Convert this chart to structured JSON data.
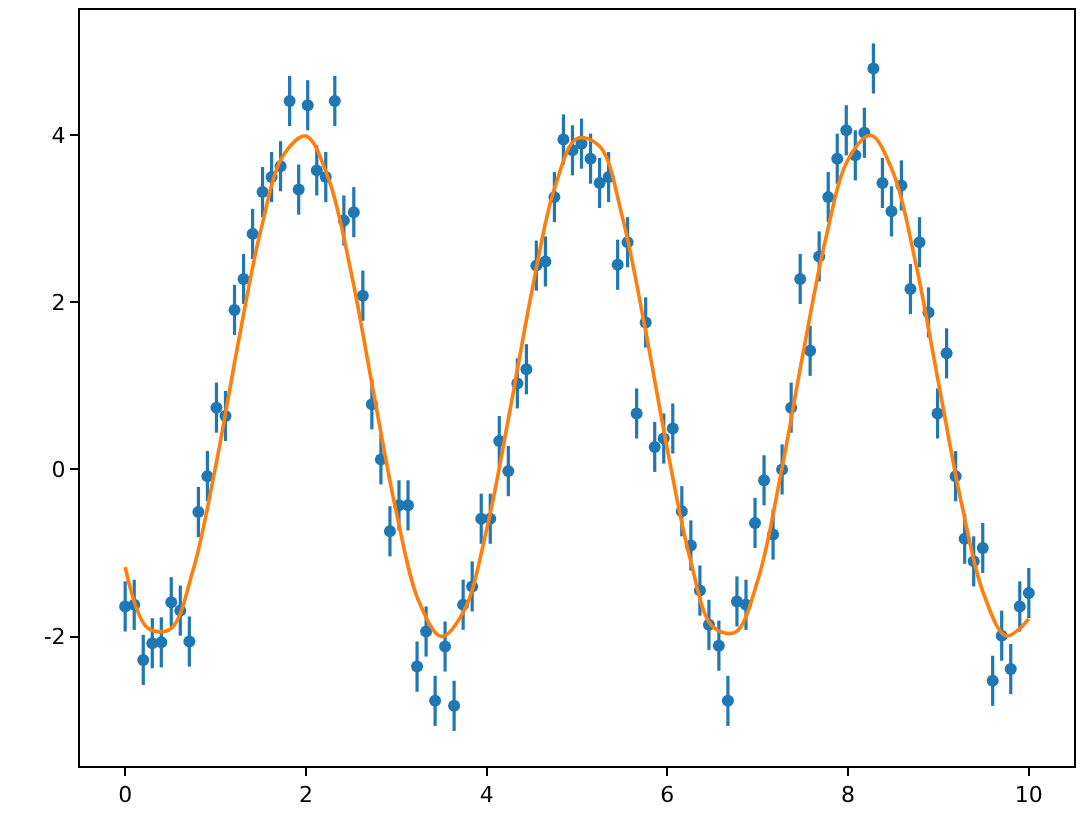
{
  "chart_data": {
    "type": "scatter",
    "xlim": [
      -0.5,
      10.5
    ],
    "ylim": [
      -3.55,
      5.5
    ],
    "xticks": [
      0,
      2,
      4,
      6,
      8,
      10
    ],
    "yticks": [
      -2,
      0,
      2,
      4
    ],
    "series": [
      {
        "color": "#1f77b4",
        "marker": "circle",
        "x": [
          0,
          0.1,
          0.2,
          0.3,
          0.4,
          0.51,
          0.61,
          0.71,
          0.81,
          0.91,
          1.01,
          1.11,
          1.21,
          1.31,
          1.41,
          1.52,
          1.62,
          1.72,
          1.82,
          1.92,
          2.02,
          2.12,
          2.22,
          2.32,
          2.42,
          2.53,
          2.63,
          2.73,
          2.83,
          2.93,
          3.03,
          3.13,
          3.23,
          3.33,
          3.43,
          3.54,
          3.64,
          3.74,
          3.84,
          3.94,
          4.04,
          4.14,
          4.24,
          4.34,
          4.44,
          4.55,
          4.65,
          4.75,
          4.85,
          4.95,
          5.05,
          5.15,
          5.25,
          5.35,
          5.45,
          5.56,
          5.66,
          5.76,
          5.86,
          5.96,
          6.06,
          6.16,
          6.26,
          6.36,
          6.46,
          6.57,
          6.67,
          6.77,
          6.87,
          6.97,
          7.07,
          7.17,
          7.27,
          7.37,
          7.47,
          7.58,
          7.68,
          7.78,
          7.88,
          7.98,
          8.08,
          8.18,
          8.28,
          8.38,
          8.48,
          8.59,
          8.69,
          8.79,
          8.89,
          8.99,
          9.09,
          9.19,
          9.29,
          9.39,
          9.49,
          9.6,
          9.7,
          9.8,
          9.9,
          10
        ],
        "values": [
          -1.64,
          -1.62,
          -2.28,
          -2.08,
          -2.07,
          -1.59,
          -1.69,
          -2.06,
          -0.51,
          -0.08,
          0.74,
          0.64,
          1.91,
          2.28,
          2.82,
          3.32,
          3.5,
          3.63,
          4.41,
          3.35,
          4.36,
          3.58,
          3.5,
          4.41,
          2.98,
          3.08,
          2.08,
          0.78,
          0.12,
          -0.74,
          -0.43,
          -0.43,
          -2.36,
          -1.94,
          -2.77,
          -2.12,
          -2.83,
          -1.62,
          -1.4,
          -0.59,
          -0.59,
          0.34,
          -0.02,
          1.03,
          1.2,
          2.44,
          2.49,
          3.26,
          3.95,
          3.82,
          3.9,
          3.72,
          3.43,
          3.5,
          2.45,
          2.72,
          0.67,
          1.76,
          0.27,
          0.37,
          0.49,
          -0.5,
          -0.91,
          -1.45,
          -1.86,
          -2.11,
          -2.77,
          -1.58,
          -1.62,
          -0.64,
          -0.13,
          -0.78,
          0.0,
          0.74,
          2.28,
          1.42,
          2.55,
          3.26,
          3.72,
          4.06,
          3.76,
          4.03,
          4.8,
          3.43,
          3.09,
          3.4,
          2.16,
          2.72,
          1.88,
          0.67,
          1.39,
          -0.08,
          -0.83,
          -1.1,
          -0.94,
          -2.53,
          -1.99,
          -2.39,
          -1.64,
          -1.48
        ],
        "errors": [
          0.3,
          0.3,
          0.3,
          0.3,
          0.3,
          0.3,
          0.3,
          0.3,
          0.3,
          0.3,
          0.3,
          0.3,
          0.3,
          0.3,
          0.3,
          0.3,
          0.3,
          0.3,
          0.3,
          0.3,
          0.3,
          0.3,
          0.3,
          0.3,
          0.3,
          0.3,
          0.3,
          0.3,
          0.3,
          0.3,
          0.3,
          0.3,
          0.3,
          0.3,
          0.3,
          0.3,
          0.3,
          0.3,
          0.3,
          0.3,
          0.3,
          0.3,
          0.3,
          0.3,
          0.3,
          0.3,
          0.3,
          0.3,
          0.3,
          0.3,
          0.3,
          0.3,
          0.3,
          0.3,
          0.3,
          0.3,
          0.3,
          0.3,
          0.3,
          0.3,
          0.3,
          0.3,
          0.3,
          0.3,
          0.3,
          0.3,
          0.3,
          0.3,
          0.3,
          0.3,
          0.3,
          0.3,
          0.3,
          0.3,
          0.3,
          0.3,
          0.3,
          0.3,
          0.3,
          0.3,
          0.3,
          0.3,
          0.3,
          0.3,
          0.3,
          0.3,
          0.3,
          0.3,
          0.3,
          0.3,
          0.3,
          0.3,
          0.3,
          0.3,
          0.3,
          0.3,
          0.3,
          0.3,
          0.3,
          0.3
        ]
      },
      {
        "type": "line",
        "color": "#ff7f0e",
        "marker": "none",
        "line_style": "solid",
        "x": [
          0,
          0.25,
          0.5,
          0.75,
          1,
          1.25,
          1.5,
          1.75,
          2,
          2.25,
          2.5,
          2.75,
          3,
          3.25,
          3.5,
          3.75,
          4,
          4.25,
          4.5,
          4.75,
          5,
          5.25,
          5.5,
          5.75,
          6,
          6.25,
          6.5,
          6.75,
          7,
          7.25,
          7.5,
          7.75,
          8,
          8.25,
          8.5,
          8.75,
          9,
          9.25,
          9.5,
          9.75,
          10
        ],
        "values": [
          -1.17,
          -1.9,
          -1.91,
          -1.21,
          0.03,
          1.51,
          2.86,
          3.76,
          3.99,
          3.48,
          2.36,
          0.91,
          -0.51,
          -1.58,
          -2.0,
          -1.69,
          -0.72,
          0.66,
          2.13,
          3.36,
          3.96,
          3.87,
          3.03,
          1.71,
          0.24,
          -1.06,
          -1.88,
          -1.95,
          -1.33,
          -0.09,
          1.38,
          2.75,
          3.71,
          4.0,
          3.55,
          2.46,
          1.04,
          -0.38,
          -1.49,
          -1.99,
          -1.79
        ]
      }
    ]
  }
}
